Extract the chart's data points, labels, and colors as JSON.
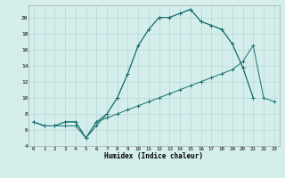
{
  "xlabel": "Humidex (Indice chaleur)",
  "bg_color": "#d4eeec",
  "grid_color": "#b8d8d6",
  "line_color": "#1a7070",
  "xlim": [
    -0.5,
    23.5
  ],
  "ylim": [
    4,
    21.5
  ],
  "xticks": [
    0,
    1,
    2,
    3,
    4,
    5,
    6,
    7,
    8,
    9,
    10,
    11,
    12,
    13,
    14,
    15,
    16,
    17,
    18,
    19,
    20,
    21,
    22,
    23
  ],
  "yticks": [
    4,
    6,
    8,
    10,
    12,
    14,
    16,
    18,
    20
  ],
  "line1_x": [
    0,
    1,
    2,
    3,
    4,
    5,
    6,
    7,
    8,
    9,
    10,
    11,
    12,
    13,
    14,
    15,
    16,
    17,
    18,
    19,
    20,
    21,
    22,
    23
  ],
  "line1_y": [
    7.0,
    6.5,
    6.5,
    7.0,
    7.0,
    5.0,
    7.0,
    7.5,
    8.0,
    8.5,
    9.0,
    9.5,
    10.0,
    10.5,
    11.0,
    11.5,
    12.0,
    12.5,
    13.0,
    13.5,
    14.5,
    16.5,
    10.0,
    9.5
  ],
  "line2_x": [
    0,
    1,
    2,
    3,
    4,
    5,
    6,
    7,
    8,
    9,
    10,
    11,
    12,
    13,
    14,
    15,
    16,
    17,
    18,
    19,
    20,
    21
  ],
  "line2_y": [
    7.0,
    6.5,
    6.5,
    6.5,
    6.5,
    5.0,
    6.5,
    8.0,
    10.0,
    13.0,
    16.5,
    18.5,
    20.0,
    20.0,
    20.5,
    21.0,
    19.5,
    19.0,
    18.5,
    16.7,
    13.8,
    10.0
  ],
  "line3_x": [
    0,
    1,
    2,
    3,
    4,
    5,
    6,
    7,
    8,
    9,
    10,
    11,
    12,
    13,
    14,
    15,
    16,
    17,
    18,
    19,
    20,
    21
  ],
  "line3_y": [
    7.0,
    6.5,
    6.5,
    7.0,
    7.0,
    5.0,
    7.0,
    8.0,
    10.0,
    13.0,
    16.5,
    18.5,
    20.0,
    20.0,
    20.5,
    21.0,
    19.5,
    19.0,
    18.5,
    16.7,
    13.8,
    10.0
  ]
}
